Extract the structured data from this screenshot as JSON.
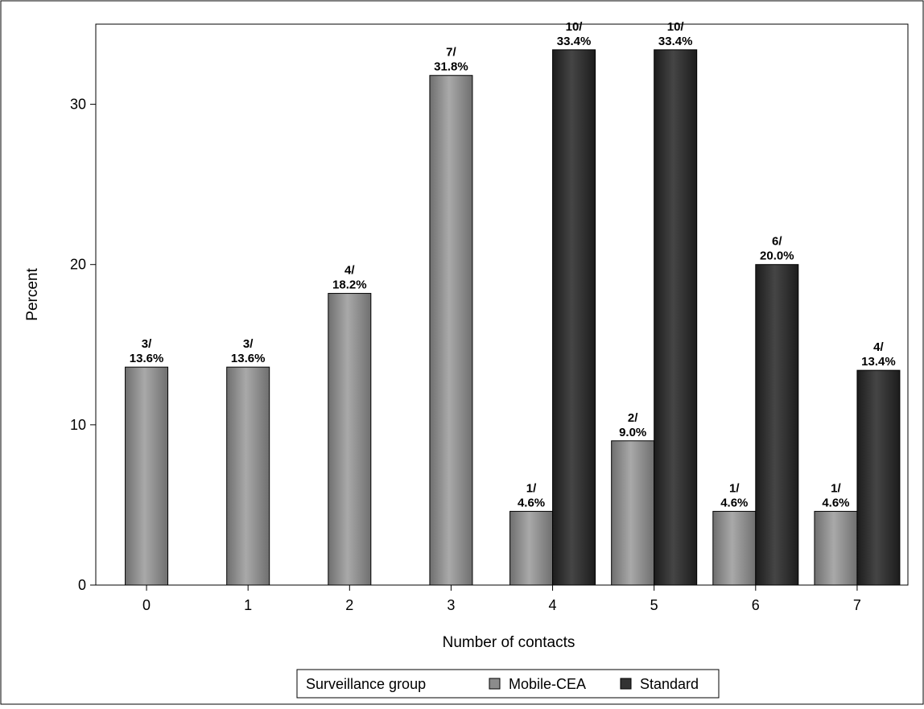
{
  "chart_data": {
    "type": "bar",
    "title": "",
    "xlabel": "Number of contacts",
    "ylabel": "Percent",
    "ylim": [
      0,
      35
    ],
    "yticks": [
      0,
      10,
      20,
      30
    ],
    "grid": false,
    "legend_placement": "bottom",
    "legend_title": "Surveillance group",
    "categories": [
      "0",
      "1",
      "2",
      "3",
      "4",
      "5",
      "6",
      "7"
    ],
    "series": [
      {
        "name": "Mobile-CEA",
        "color": "#8c8c8c",
        "values": [
          13.6,
          13.6,
          18.2,
          31.8,
          4.6,
          9.0,
          4.6,
          4.6
        ],
        "labels": [
          [
            "3/",
            "13.6%"
          ],
          [
            "3/",
            "13.6%"
          ],
          [
            "4/",
            "18.2%"
          ],
          [
            "7/",
            "31.8%"
          ],
          [
            "1/",
            "4.6%"
          ],
          [
            "2/",
            "9.0%"
          ],
          [
            "1/",
            "4.6%"
          ],
          [
            "1/",
            "4.6%"
          ]
        ]
      },
      {
        "name": "Standard",
        "color": "#333333",
        "values": [
          null,
          null,
          null,
          null,
          33.4,
          33.4,
          20.0,
          13.4
        ],
        "labels": [
          null,
          null,
          null,
          null,
          [
            "10/",
            "33.4%"
          ],
          [
            "10/",
            "33.4%"
          ],
          [
            "6/",
            "20.0%"
          ],
          [
            "4/",
            "13.4%"
          ]
        ]
      }
    ]
  }
}
